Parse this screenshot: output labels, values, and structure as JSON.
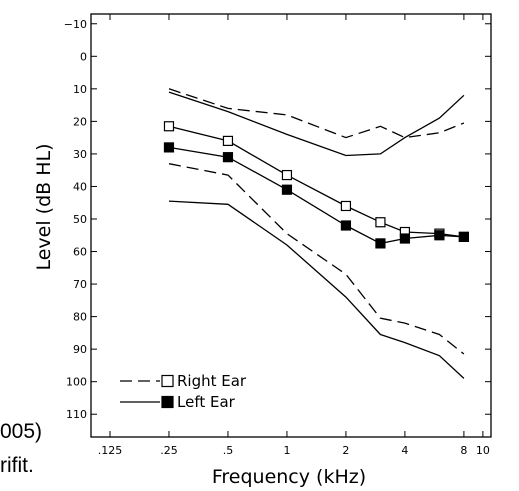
{
  "chart_data": {
    "type": "line",
    "title": "",
    "xlabel": "Frequency (kHz)",
    "ylabel": "Level (dB HL)",
    "x_scale": "log",
    "y_inverted": true,
    "xlim": [
      0.1,
      11
    ],
    "ylim": [
      -13,
      117
    ],
    "x_ticks": [
      0.125,
      0.25,
      0.5,
      1,
      2,
      4,
      8,
      10
    ],
    "x_tick_labels": [
      ".125",
      ".25",
      ".5",
      "1",
      "2",
      "4",
      "8",
      "10"
    ],
    "y_ticks": [
      -10,
      0,
      10,
      20,
      30,
      40,
      50,
      60,
      70,
      80,
      90,
      100,
      110
    ],
    "y_tick_labels": [
      "−10",
      "0",
      "10",
      "20",
      "30",
      "40",
      "50",
      "60",
      "70",
      "80",
      "90",
      "100",
      "110"
    ],
    "grid": false,
    "legend_position": "bottom-left",
    "legend": [
      {
        "label": "Right Ear",
        "line": "dashed",
        "marker": "open-square"
      },
      {
        "label": "Left Ear",
        "line": "solid",
        "marker": "filled-square"
      }
    ],
    "series": [
      {
        "name": "Right Ear",
        "role": "mean",
        "style": "solid",
        "marker": "open-square",
        "x": [
          0.25,
          0.5,
          1,
          2,
          3,
          4,
          6,
          8
        ],
        "y": [
          21.5,
          26,
          36.5,
          46,
          51,
          54,
          54.5,
          55.5
        ]
      },
      {
        "name": "Left Ear",
        "role": "mean",
        "style": "solid",
        "marker": "filled-square",
        "x": [
          0.25,
          0.5,
          1,
          2,
          3,
          4,
          6,
          8
        ],
        "y": [
          28,
          31,
          41,
          52,
          57.5,
          56,
          55,
          55.5
        ]
      },
      {
        "name": "Right Ear",
        "role": "upper-bound",
        "style": "dashed",
        "x": [
          0.25,
          0.5,
          1,
          2,
          3,
          4,
          6,
          8
        ],
        "y": [
          10,
          16,
          18,
          25,
          21.5,
          25,
          23.5,
          20.5
        ]
      },
      {
        "name": "Left Ear",
        "role": "upper-bound",
        "style": "solid",
        "x": [
          0.25,
          0.5,
          1,
          2,
          3,
          4,
          6,
          8
        ],
        "y": [
          11,
          17,
          24,
          30.5,
          30,
          25,
          19,
          12
        ]
      },
      {
        "name": "Right Ear",
        "role": "lower-bound",
        "style": "dashed",
        "x": [
          0.25,
          0.5,
          1,
          2,
          3,
          4,
          6,
          8
        ],
        "y": [
          33,
          36.5,
          54.5,
          67,
          80.5,
          82,
          85.5,
          91.5
        ]
      },
      {
        "name": "Left Ear",
        "role": "lower-bound",
        "style": "solid",
        "x": [
          0.25,
          0.5,
          1,
          2,
          3,
          4,
          6,
          8
        ],
        "y": [
          44.5,
          45.5,
          58,
          74,
          85.5,
          88,
          92,
          99
        ]
      }
    ]
  },
  "page_fragments": {
    "line1": "005)",
    "line2": "rifit."
  }
}
